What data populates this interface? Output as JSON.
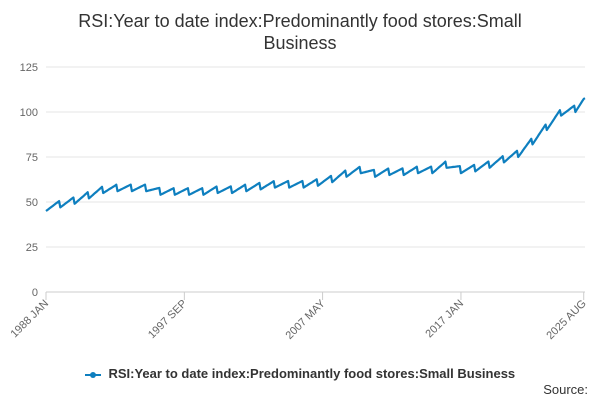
{
  "chart_data": {
    "type": "line",
    "title_line1": "RSI:Year to date index:Predominantly food stores:Small",
    "title_line2": "Business",
    "xlabel": "",
    "ylabel": "",
    "ylim": [
      0,
      125
    ],
    "yticks": [
      0,
      25,
      50,
      75,
      100,
      125
    ],
    "xlim": [
      1988.0,
      2025.67
    ],
    "x_tick_labels": [
      {
        "label": "1988 JAN",
        "x": 1988.0
      },
      {
        "label": "1997 SEP",
        "x": 1997.67
      },
      {
        "label": "2007 MAY",
        "x": 2007.33
      },
      {
        "label": "2017 JAN",
        "x": 2017.0
      },
      {
        "label": "2025 AUG",
        "x": 2025.58
      }
    ],
    "grid": true,
    "legend_position": "bottom",
    "color": "#0e7fbf",
    "series": [
      {
        "name": "RSI:Year to date index:Predominantly food stores:Small Business",
        "anchors": [
          [
            1988.0,
            47
          ],
          [
            1989.0,
            49
          ],
          [
            1990.0,
            51
          ],
          [
            1991.0,
            54
          ],
          [
            1992.0,
            57
          ],
          [
            1993.0,
            58
          ],
          [
            1994.0,
            58
          ],
          [
            1995.0,
            58
          ],
          [
            1996.0,
            56
          ],
          [
            1997.0,
            56
          ],
          [
            1998.0,
            56
          ],
          [
            1999.0,
            56
          ],
          [
            2000.0,
            57
          ],
          [
            2001.0,
            57
          ],
          [
            2002.0,
            58
          ],
          [
            2003.0,
            59
          ],
          [
            2004.0,
            60
          ],
          [
            2005.0,
            60
          ],
          [
            2006.0,
            60
          ],
          [
            2007.0,
            61
          ],
          [
            2008.0,
            63
          ],
          [
            2009.0,
            66
          ],
          [
            2010.0,
            68
          ],
          [
            2011.0,
            66
          ],
          [
            2012.0,
            67
          ],
          [
            2013.0,
            67
          ],
          [
            2014.0,
            68
          ],
          [
            2015.0,
            68
          ],
          [
            2016.0,
            71
          ],
          [
            2017.0,
            68
          ],
          [
            2018.0,
            69
          ],
          [
            2019.0,
            71
          ],
          [
            2020.0,
            74
          ],
          [
            2021.0,
            77
          ],
          [
            2022.0,
            84
          ],
          [
            2023.0,
            92
          ],
          [
            2024.0,
            100
          ],
          [
            2025.0,
            102
          ],
          [
            2025.58,
            107
          ]
        ],
        "yearly_dip": 4
      }
    ]
  },
  "legend": {
    "label": "RSI:Year to date index:Predominantly food stores:Small Business"
  },
  "source": {
    "label": "Source:"
  }
}
